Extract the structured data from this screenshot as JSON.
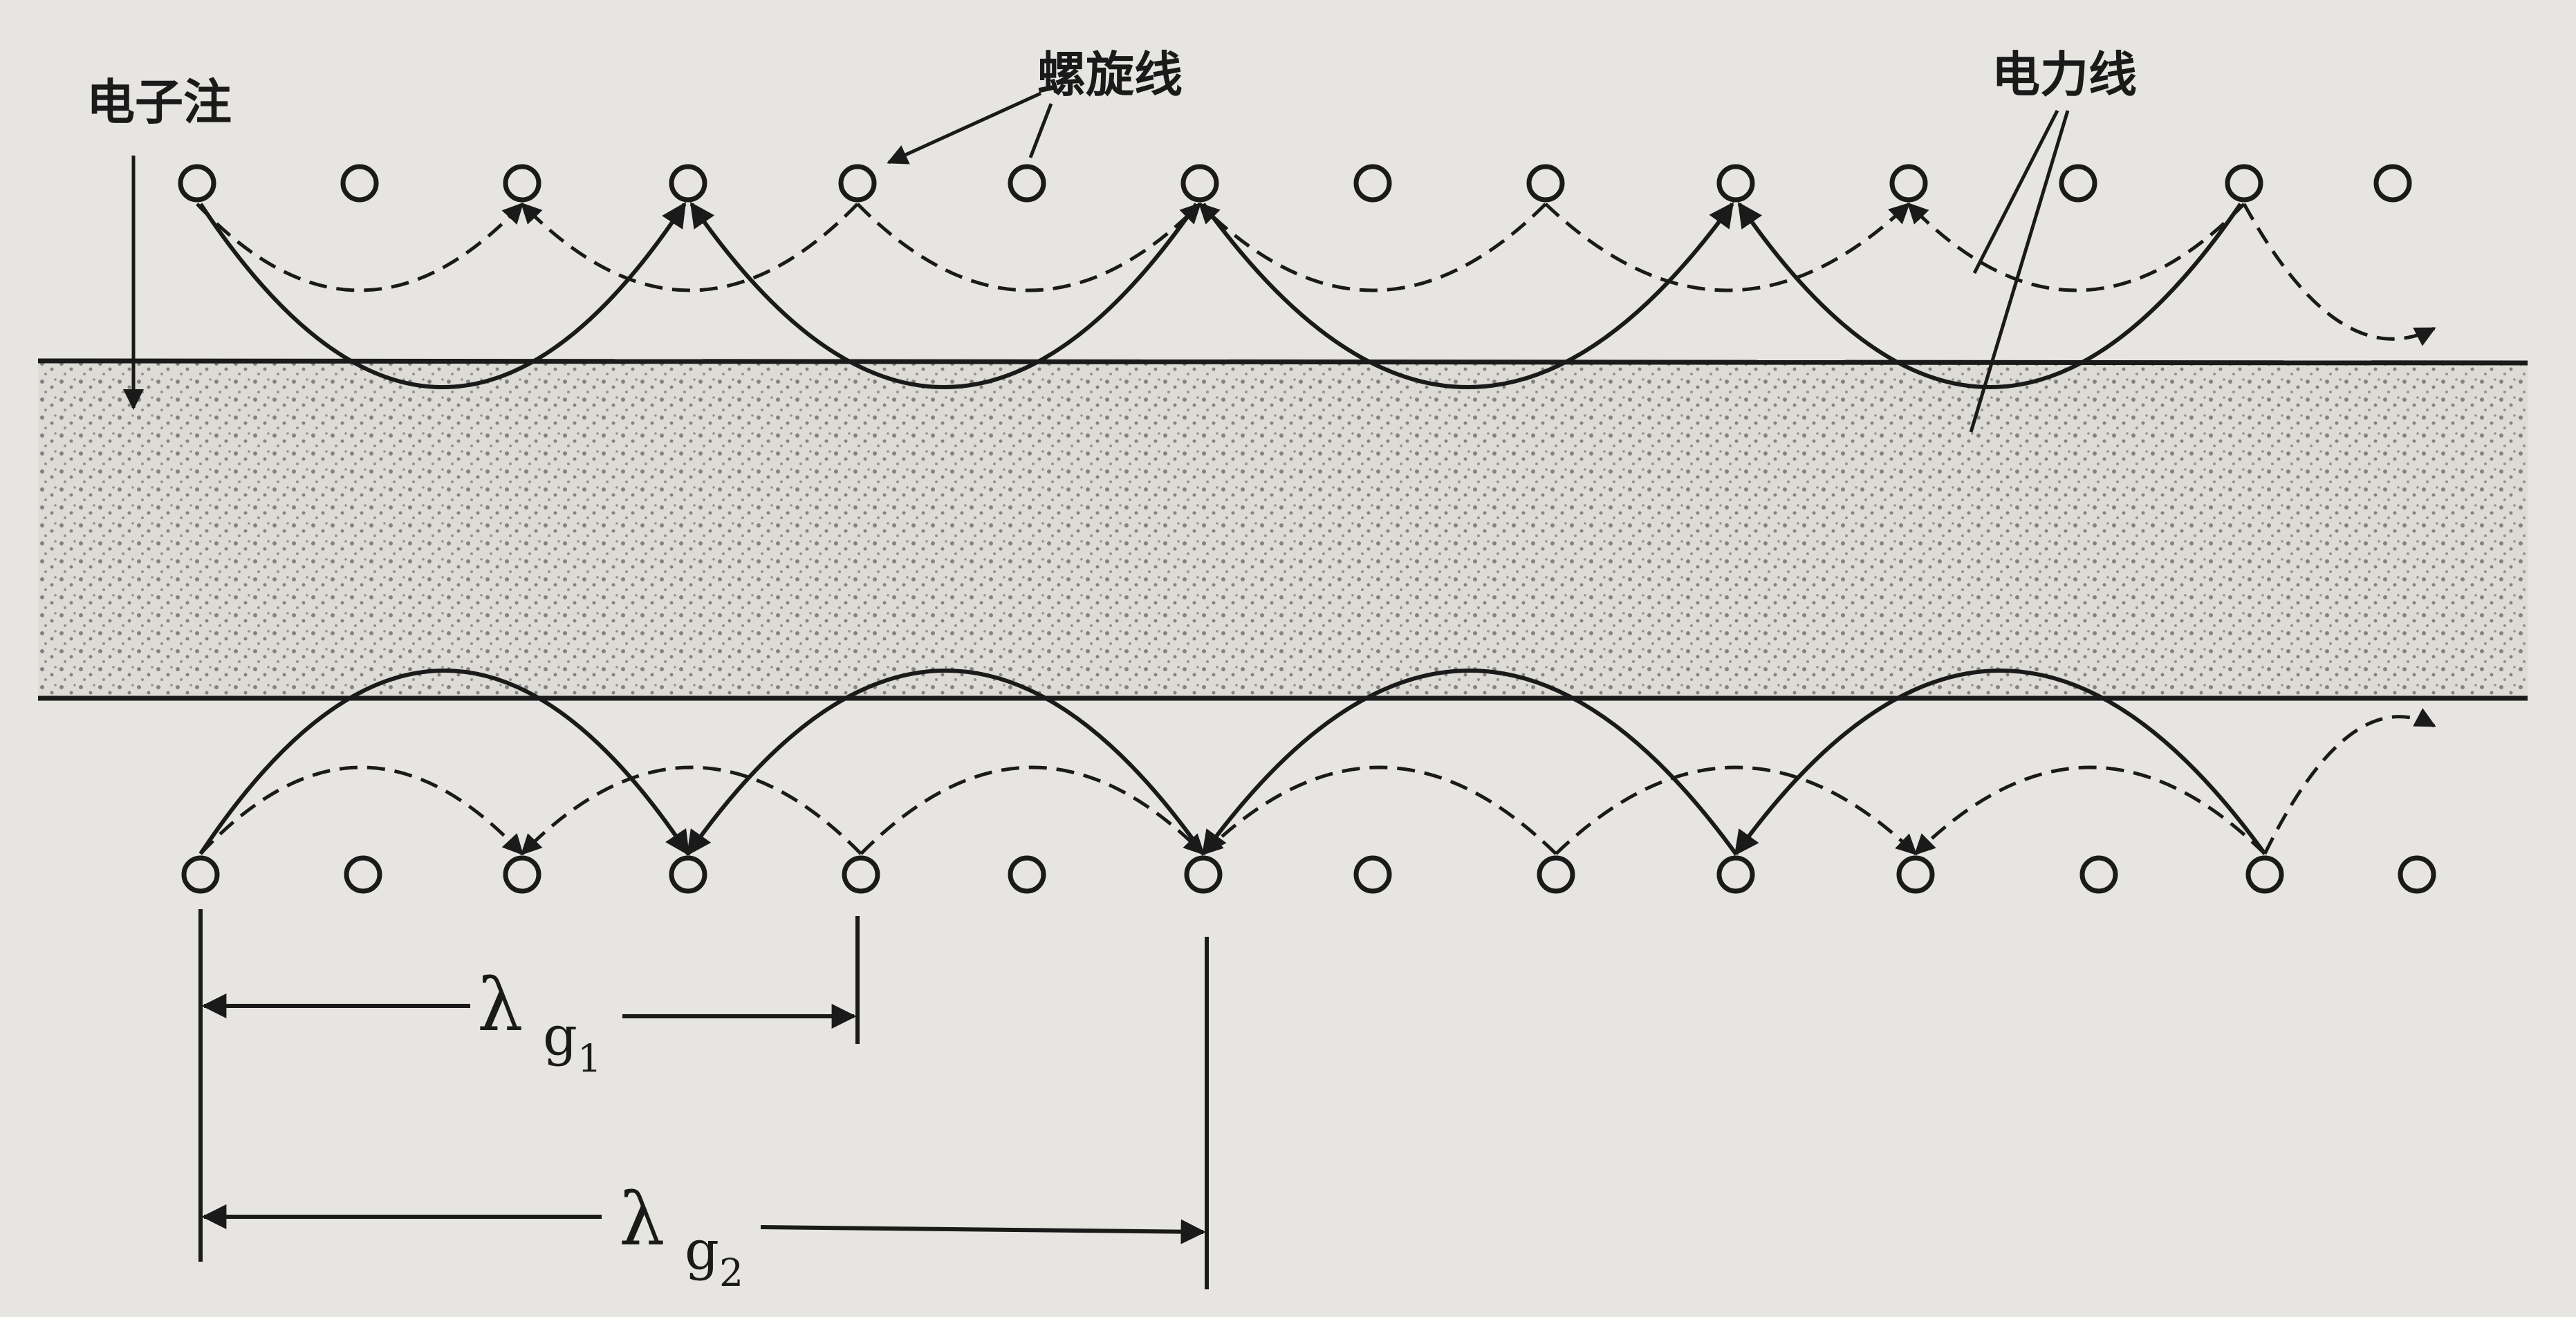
{
  "labels": {
    "beam": "电子注",
    "helix": "螺旋线",
    "field_lines": "电力线"
  },
  "wavelengths": [
    {
      "symbol": "λ",
      "sub_letter": "g",
      "sub_index": "1"
    },
    {
      "symbol": "λ",
      "sub_letter": "g",
      "sub_index": "2"
    }
  ],
  "colors": {
    "ink": "#1a1a1a",
    "paper": "#e6e5e1",
    "beam_fill": "#dcdbd6"
  }
}
